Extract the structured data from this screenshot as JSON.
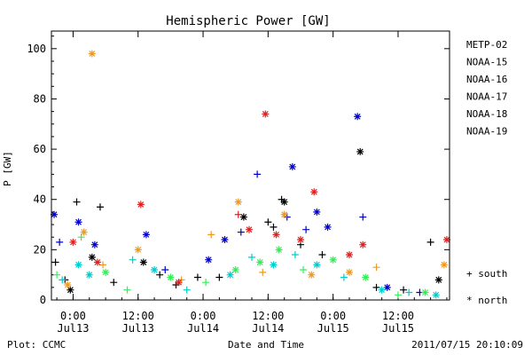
{
  "chart_data": {
    "type": "scatter",
    "title": "Hemispheric Power [GW]",
    "xlabel": "Date and Time",
    "ylabel": "P [GW]",
    "ylim": [
      0,
      107
    ],
    "xlim": [
      "2011-07-12 20:00",
      "2011-07-15 21:30"
    ],
    "yticks": [
      0,
      20,
      40,
      60,
      80,
      100
    ],
    "xticks": [
      {
        "time": "2011-07-13 00:00",
        "line1": "0:00",
        "line2": "Jul13"
      },
      {
        "time": "2011-07-13 12:00",
        "line1": "12:00",
        "line2": "Jul13"
      },
      {
        "time": "2011-07-14 00:00",
        "line1": "0:00",
        "line2": "Jul14"
      },
      {
        "time": "2011-07-14 12:00",
        "line1": "12:00",
        "line2": "Jul14"
      },
      {
        "time": "2011-07-15 00:00",
        "line1": "0:00",
        "line2": "Jul15"
      },
      {
        "time": "2011-07-15 12:00",
        "line1": "12:00",
        "line2": "Jul15"
      }
    ],
    "marker_legend": [
      {
        "symbol": "+",
        "label": "south"
      },
      {
        "symbol": "*",
        "label": "north"
      }
    ],
    "series": [
      {
        "name": "METP-02",
        "color": "#000000",
        "points": [
          {
            "t": "2011-07-12 20:45",
            "v": 15,
            "m": "+"
          },
          {
            "t": "2011-07-12 22:30",
            "v": 8,
            "m": "+"
          },
          {
            "t": "2011-07-12 23:30",
            "v": 4,
            "m": "*"
          },
          {
            "t": "2011-07-13 00:40",
            "v": 39,
            "m": "+"
          },
          {
            "t": "2011-07-13 03:30",
            "v": 17,
            "m": "*"
          },
          {
            "t": "2011-07-13 05:00",
            "v": 37,
            "m": "+"
          },
          {
            "t": "2011-07-13 07:30",
            "v": 7,
            "m": "+"
          },
          {
            "t": "2011-07-13 13:00",
            "v": 15,
            "m": "*"
          },
          {
            "t": "2011-07-13 16:00",
            "v": 10,
            "m": "+"
          },
          {
            "t": "2011-07-13 19:00",
            "v": 6,
            "m": "+"
          },
          {
            "t": "2011-07-13 23:00",
            "v": 9,
            "m": "+"
          },
          {
            "t": "2011-07-14 03:00",
            "v": 9,
            "m": "+"
          },
          {
            "t": "2011-07-14 07:30",
            "v": 33,
            "m": "*"
          },
          {
            "t": "2011-07-14 12:00",
            "v": 31,
            "m": "+"
          },
          {
            "t": "2011-07-14 13:00",
            "v": 29,
            "m": "+"
          },
          {
            "t": "2011-07-14 14:30",
            "v": 40,
            "m": "+"
          },
          {
            "t": "2011-07-14 15:00",
            "v": 39,
            "m": "*"
          },
          {
            "t": "2011-07-14 18:00",
            "v": 22,
            "m": "+"
          },
          {
            "t": "2011-07-14 22:00",
            "v": 18,
            "m": "+"
          },
          {
            "t": "2011-07-15 05:00",
            "v": 59,
            "m": "*"
          },
          {
            "t": "2011-07-15 08:00",
            "v": 5,
            "m": "+"
          },
          {
            "t": "2011-07-15 13:00",
            "v": 4,
            "m": "+"
          },
          {
            "t": "2011-07-15 18:00",
            "v": 23,
            "m": "+"
          },
          {
            "t": "2011-07-15 19:30",
            "v": 8,
            "m": "*"
          }
        ]
      },
      {
        "name": "NOAA-15",
        "color": "#0000cc",
        "points": [
          {
            "t": "2011-07-12 20:30",
            "v": 34,
            "m": "*"
          },
          {
            "t": "2011-07-12 21:30",
            "v": 23,
            "m": "+"
          },
          {
            "t": "2011-07-13 01:00",
            "v": 31,
            "m": "*"
          },
          {
            "t": "2011-07-13 04:00",
            "v": 22,
            "m": "*"
          },
          {
            "t": "2011-07-13 13:30",
            "v": 26,
            "m": "*"
          },
          {
            "t": "2011-07-13 17:00",
            "v": 12,
            "m": "+"
          },
          {
            "t": "2011-07-14 01:00",
            "v": 16,
            "m": "*"
          },
          {
            "t": "2011-07-14 04:00",
            "v": 24,
            "m": "*"
          },
          {
            "t": "2011-07-14 07:00",
            "v": 27,
            "m": "+"
          },
          {
            "t": "2011-07-14 10:00",
            "v": 50,
            "m": "+"
          },
          {
            "t": "2011-07-14 15:30",
            "v": 33,
            "m": "+"
          },
          {
            "t": "2011-07-14 16:30",
            "v": 53,
            "m": "*"
          },
          {
            "t": "2011-07-14 19:00",
            "v": 28,
            "m": "+"
          },
          {
            "t": "2011-07-14 21:00",
            "v": 35,
            "m": "*"
          },
          {
            "t": "2011-07-14 23:00",
            "v": 29,
            "m": "*"
          },
          {
            "t": "2011-07-15 04:30",
            "v": 73,
            "m": "*"
          },
          {
            "t": "2011-07-15 05:30",
            "v": 33,
            "m": "+"
          },
          {
            "t": "2011-07-15 10:00",
            "v": 5,
            "m": "*"
          },
          {
            "t": "2011-07-15 16:00",
            "v": 3,
            "m": "+"
          }
        ]
      },
      {
        "name": "NOAA-16",
        "color": "#00cccc",
        "points": [
          {
            "t": "2011-07-12 22:00",
            "v": 8,
            "m": "+"
          },
          {
            "t": "2011-07-13 01:00",
            "v": 14,
            "m": "*"
          },
          {
            "t": "2011-07-13 03:00",
            "v": 10,
            "m": "*"
          },
          {
            "t": "2011-07-13 11:00",
            "v": 16,
            "m": "+"
          },
          {
            "t": "2011-07-13 15:00",
            "v": 12,
            "m": "*"
          },
          {
            "t": "2011-07-13 21:00",
            "v": 4,
            "m": "+"
          },
          {
            "t": "2011-07-14 05:00",
            "v": 10,
            "m": "*"
          },
          {
            "t": "2011-07-14 09:00",
            "v": 17,
            "m": "+"
          },
          {
            "t": "2011-07-14 13:00",
            "v": 14,
            "m": "*"
          },
          {
            "t": "2011-07-14 17:00",
            "v": 18,
            "m": "+"
          },
          {
            "t": "2011-07-14 21:00",
            "v": 14,
            "m": "*"
          },
          {
            "t": "2011-07-15 02:00",
            "v": 9,
            "m": "+"
          },
          {
            "t": "2011-07-15 09:00",
            "v": 4,
            "m": "*"
          },
          {
            "t": "2011-07-15 14:00",
            "v": 3,
            "m": "+"
          },
          {
            "t": "2011-07-15 19:00",
            "v": 2,
            "m": "*"
          }
        ]
      },
      {
        "name": "NOAA-17",
        "color": "#33ee55",
        "points": [
          {
            "t": "2011-07-12 21:00",
            "v": 10,
            "m": "+"
          },
          {
            "t": "2011-07-13 01:30",
            "v": 25,
            "m": "+"
          },
          {
            "t": "2011-07-13 06:00",
            "v": 11,
            "m": "*"
          },
          {
            "t": "2011-07-13 10:00",
            "v": 4,
            "m": "+"
          },
          {
            "t": "2011-07-13 18:00",
            "v": 9,
            "m": "*"
          },
          {
            "t": "2011-07-14 00:30",
            "v": 7,
            "m": "+"
          },
          {
            "t": "2011-07-14 06:00",
            "v": 12,
            "m": "*"
          },
          {
            "t": "2011-07-14 10:30",
            "v": 15,
            "m": "*"
          },
          {
            "t": "2011-07-14 14:00",
            "v": 20,
            "m": "*"
          },
          {
            "t": "2011-07-14 18:30",
            "v": 12,
            "m": "+"
          },
          {
            "t": "2011-07-15 00:00",
            "v": 16,
            "m": "*"
          },
          {
            "t": "2011-07-15 06:00",
            "v": 9,
            "m": "*"
          },
          {
            "t": "2011-07-15 12:00",
            "v": 2,
            "m": "+"
          },
          {
            "t": "2011-07-15 17:00",
            "v": 3,
            "m": "*"
          }
        ]
      },
      {
        "name": "NOAA-18",
        "color": "#ee9922",
        "points": [
          {
            "t": "2011-07-12 23:00",
            "v": 6,
            "m": "*"
          },
          {
            "t": "2011-07-13 02:00",
            "v": 27,
            "m": "*"
          },
          {
            "t": "2011-07-13 03:30",
            "v": 98,
            "m": "*"
          },
          {
            "t": "2011-07-13 05:30",
            "v": 14,
            "m": "+"
          },
          {
            "t": "2011-07-13 12:00",
            "v": 20,
            "m": "*"
          },
          {
            "t": "2011-07-13 20:00",
            "v": 8,
            "m": "+"
          },
          {
            "t": "2011-07-14 01:30",
            "v": 26,
            "m": "+"
          },
          {
            "t": "2011-07-14 06:30",
            "v": 39,
            "m": "*"
          },
          {
            "t": "2011-07-14 11:00",
            "v": 11,
            "m": "+"
          },
          {
            "t": "2011-07-14 15:00",
            "v": 34,
            "m": "*"
          },
          {
            "t": "2011-07-14 20:00",
            "v": 10,
            "m": "*"
          },
          {
            "t": "2011-07-15 03:00",
            "v": 11,
            "m": "*"
          },
          {
            "t": "2011-07-15 08:00",
            "v": 13,
            "m": "+"
          },
          {
            "t": "2011-07-15 20:30",
            "v": 14,
            "m": "*"
          }
        ]
      },
      {
        "name": "NOAA-19",
        "color": "#dd2222",
        "points": [
          {
            "t": "2011-07-13 00:00",
            "v": 23,
            "m": "*"
          },
          {
            "t": "2011-07-13 04:30",
            "v": 15,
            "m": "*"
          },
          {
            "t": "2011-07-13 12:30",
            "v": 38,
            "m": "*"
          },
          {
            "t": "2011-07-13 19:30",
            "v": 7,
            "m": "*"
          },
          {
            "t": "2011-07-14 06:30",
            "v": 34,
            "m": "+"
          },
          {
            "t": "2011-07-14 08:30",
            "v": 28,
            "m": "*"
          },
          {
            "t": "2011-07-14 11:30",
            "v": 74,
            "m": "*"
          },
          {
            "t": "2011-07-14 13:30",
            "v": 26,
            "m": "*"
          },
          {
            "t": "2011-07-14 18:00",
            "v": 24,
            "m": "*"
          },
          {
            "t": "2011-07-14 20:30",
            "v": 43,
            "m": "*"
          },
          {
            "t": "2011-07-15 03:00",
            "v": 18,
            "m": "*"
          },
          {
            "t": "2011-07-15 05:30",
            "v": 22,
            "m": "*"
          },
          {
            "t": "2011-07-15 21:00",
            "v": 24,
            "m": "*"
          }
        ]
      }
    ]
  },
  "footer": {
    "left": "Plot: CCMC",
    "right": "2011/07/15 20:10:09"
  }
}
